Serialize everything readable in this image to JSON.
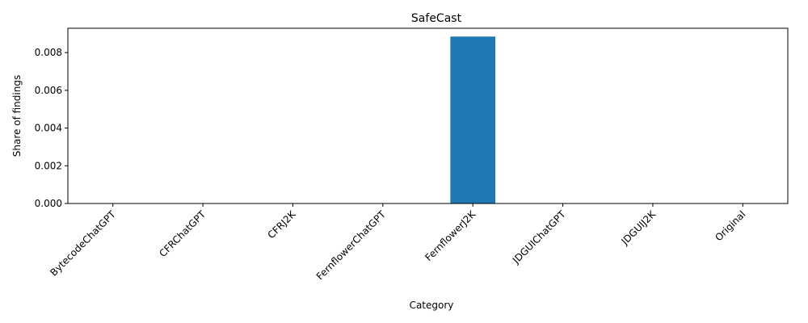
{
  "chart_data": {
    "type": "bar",
    "title": "SafeCast",
    "xlabel": "Category",
    "ylabel": "Share of findings",
    "categories": [
      "BytecodeChatGPT",
      "CFRChatGPT",
      "CFRJ2K",
      "FernflowerChatGPT",
      "FernflowerJ2K",
      "JDGUIChatGPT",
      "JDGUIJ2K",
      "Original"
    ],
    "values": [
      0,
      0,
      0,
      0,
      0.00885,
      0,
      0,
      0
    ],
    "ylim": [
      0,
      0.00929
    ],
    "yticks": [
      0.0,
      0.002,
      0.004,
      0.006,
      0.008
    ],
    "ytick_labels": [
      "0.000",
      "0.002",
      "0.004",
      "0.006",
      "0.008"
    ],
    "bar_color": "#1f77b4",
    "grid": false,
    "legend": "none"
  }
}
